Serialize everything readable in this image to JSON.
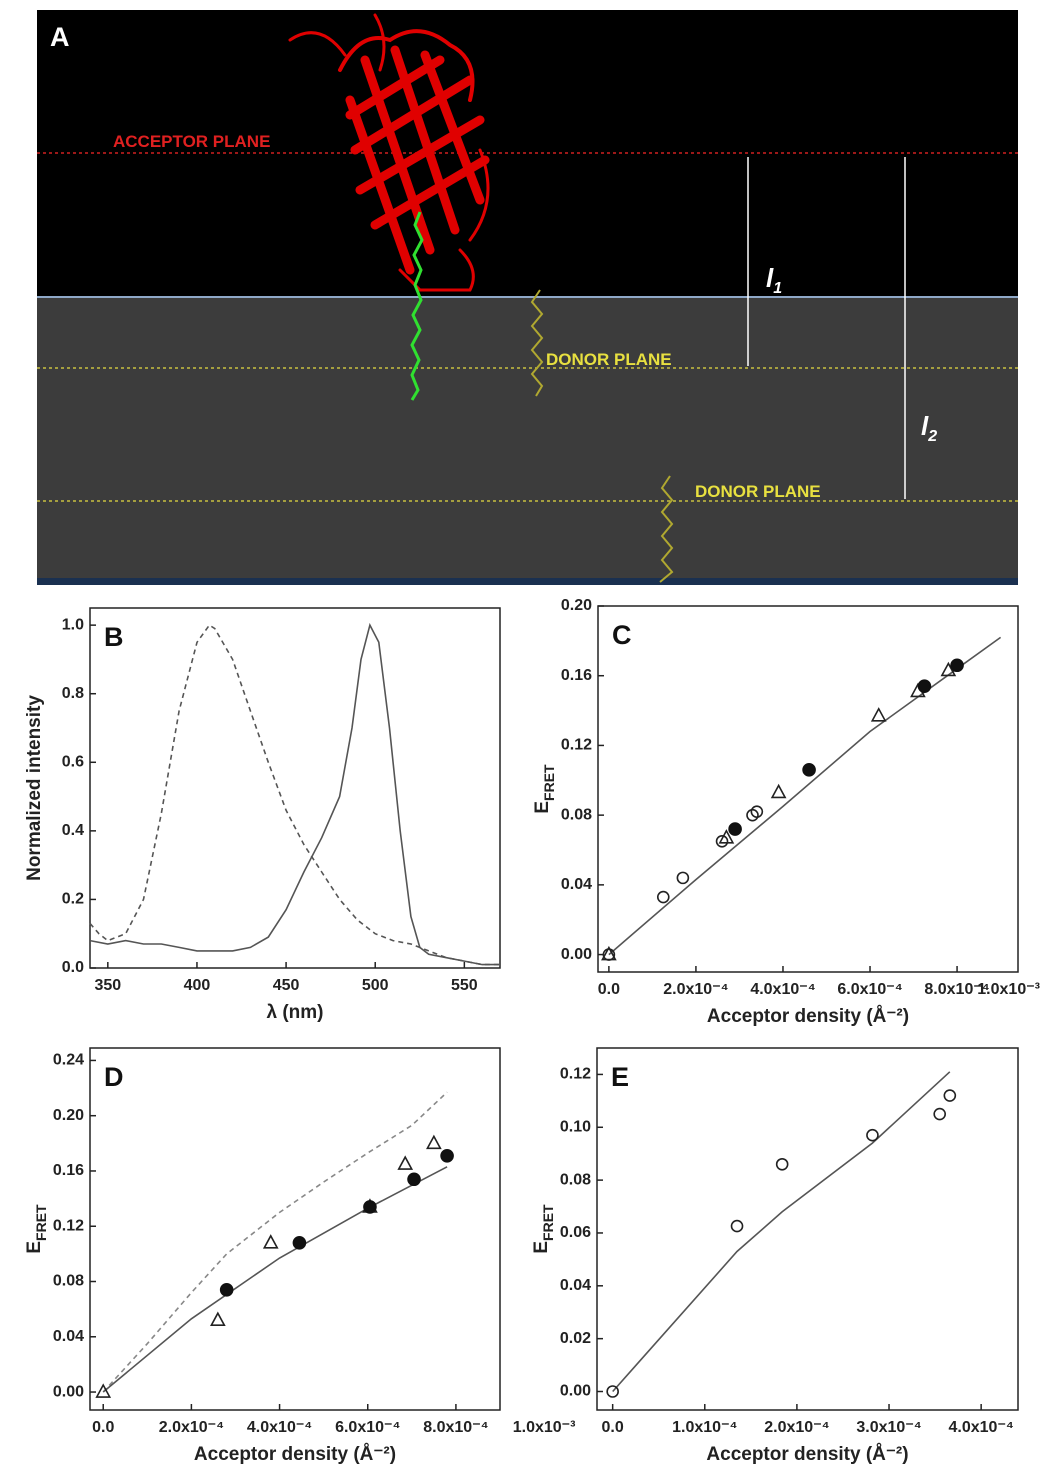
{
  "panel_a": {
    "label": "A",
    "acceptor_plane": "ACCEPTOR PLANE",
    "donor_plane_1": "DONOR PLANE",
    "donor_plane_2": "DONOR PLANE",
    "l1": {
      "main": "l",
      "sub": "1"
    },
    "l2": {
      "main": "l",
      "sub": "2"
    }
  },
  "chart_data": [
    {
      "type": "line",
      "panel": "B",
      "xlabel": "λ (nm)",
      "ylabel": "Normalized intensity",
      "xlim": [
        340,
        570
      ],
      "xticks": [
        350,
        400,
        450,
        500,
        550
      ],
      "ylim": [
        0,
        1.05
      ],
      "yticks": [
        {
          "value": 0,
          "label": "0.0"
        },
        0.2,
        0.4,
        0.6,
        0.8,
        {
          "value": 1,
          "label": "1.0"
        }
      ],
      "series": [
        {
          "style": "dashed",
          "color": "#555555",
          "x": [
            340,
            345,
            350,
            360,
            370,
            380,
            390,
            400,
            407,
            410,
            420,
            430,
            440,
            450,
            460,
            470,
            480,
            490,
            500,
            510,
            520,
            530,
            540,
            550,
            560,
            570
          ],
          "values": [
            0.13,
            0.1,
            0.08,
            0.1,
            0.2,
            0.45,
            0.75,
            0.95,
            1.0,
            0.99,
            0.9,
            0.75,
            0.6,
            0.46,
            0.36,
            0.28,
            0.2,
            0.14,
            0.1,
            0.08,
            0.07,
            0.05,
            0.03,
            0.02,
            0.01,
            0.01
          ]
        },
        {
          "style": "solid",
          "color": "#555555",
          "x": [
            340,
            350,
            360,
            370,
            380,
            390,
            400,
            410,
            420,
            430,
            440,
            450,
            460,
            470,
            480,
            487,
            492,
            497,
            502,
            508,
            514,
            520,
            525,
            530,
            540,
            550,
            560,
            570
          ],
          "values": [
            0.08,
            0.07,
            0.08,
            0.07,
            0.07,
            0.06,
            0.05,
            0.05,
            0.05,
            0.06,
            0.09,
            0.17,
            0.28,
            0.38,
            0.5,
            0.7,
            0.9,
            1.0,
            0.95,
            0.7,
            0.4,
            0.15,
            0.06,
            0.04,
            0.03,
            0.02,
            0.01,
            0.01
          ]
        }
      ]
    },
    {
      "type": "scatter",
      "panel": "C",
      "xlabel": "Acceptor density (Å⁻²)",
      "ylabel": {
        "main": "E",
        "sub": "FRET"
      },
      "xlim": [
        -2.5e-05,
        0.00094
      ],
      "xticks": [
        {
          "value": 0,
          "label": "0.0"
        },
        {
          "value": 0.0002,
          "label": "2.0x10⁻⁴"
        },
        {
          "value": 0.0004,
          "label": "4.0x10⁻⁴"
        },
        {
          "value": 0.0006,
          "label": "6.0x10⁻⁴"
        },
        {
          "value": 0.0008,
          "label": "8.0x10⁻⁴"
        },
        {
          "value": 0.001,
          "label": "1.0x10⁻³"
        }
      ],
      "ylim": [
        -0.01,
        0.2
      ],
      "yticks": [
        {
          "value": 0,
          "label": "0.00"
        },
        0.04,
        0.08,
        0.12,
        0.16,
        {
          "value": 0.2,
          "label": "0.20"
        }
      ],
      "series": [
        {
          "style": "solid",
          "color": "#555555",
          "x": [
            0,
            0.0002,
            0.0004,
            0.0006,
            0.0008,
            0.0009
          ],
          "values": [
            0,
            0.043,
            0.085,
            0.128,
            0.164,
            0.182
          ]
        },
        {
          "style": "circle-open",
          "color": "#222222",
          "x": [
            0,
            0.000125,
            0.00017,
            0.00026,
            0.00033,
            0.00034
          ],
          "values": [
            0,
            0.033,
            0.044,
            0.065,
            0.08,
            0.082
          ]
        },
        {
          "style": "triangle-open",
          "color": "#222222",
          "x": [
            0,
            0.00027,
            0.00039,
            0.00062,
            0.00071,
            0.00078
          ],
          "values": [
            0,
            0.067,
            0.093,
            0.137,
            0.151,
            0.163
          ]
        },
        {
          "style": "circle-filled",
          "color": "#111111",
          "x": [
            0.00029,
            0.00046,
            0.000725,
            0.0008
          ],
          "values": [
            0.072,
            0.106,
            0.154,
            0.166
          ]
        }
      ]
    },
    {
      "type": "scatter",
      "panel": "D",
      "xlabel": "Acceptor density (Å⁻²)",
      "ylabel": {
        "main": "E",
        "sub": "FRET"
      },
      "xlim": [
        -3e-05,
        0.0009
      ],
      "xticks": [
        {
          "value": 0,
          "label": "0.0"
        },
        {
          "value": 0.0002,
          "label": "2.0x10⁻⁴"
        },
        {
          "value": 0.0004,
          "label": "4.0x10⁻⁴"
        },
        {
          "value": 0.0006,
          "label": "6.0x10⁻⁴"
        },
        {
          "value": 0.0008,
          "label": "8.0x10⁻⁴"
        },
        {
          "value": 0.001,
          "label": "1.0x10⁻³"
        }
      ],
      "ylim": [
        -0.013,
        0.249
      ],
      "yticks": [
        {
          "value": 0,
          "label": "0.00"
        },
        0.04,
        0.08,
        0.12,
        0.16,
        {
          "value": 0.2,
          "label": "0.20"
        },
        0.24
      ],
      "series": [
        {
          "style": "dashed",
          "color": "#888888",
          "x": [
            0,
            0.0001,
            0.0002,
            0.00028,
            0.0004,
            0.0005,
            0.0006,
            0.0007,
            0.00078
          ],
          "values": [
            0,
            0.035,
            0.072,
            0.1,
            0.13,
            0.152,
            0.173,
            0.193,
            0.217
          ]
        },
        {
          "style": "solid",
          "color": "#555555",
          "x": [
            0,
            0.0002,
            0.0004,
            0.0006,
            0.00078
          ],
          "values": [
            0,
            0.053,
            0.097,
            0.133,
            0.163
          ]
        },
        {
          "style": "triangle-open",
          "color": "#222222",
          "x": [
            0,
            0.00026,
            0.00038,
            0.000605,
            0.000685,
            0.00075
          ],
          "values": [
            0,
            0.052,
            0.108,
            0.134,
            0.165,
            0.18
          ]
        },
        {
          "style": "circle-filled",
          "color": "#111111",
          "x": [
            0.00028,
            0.000445,
            0.000605,
            0.000705,
            0.00078
          ],
          "values": [
            0.074,
            0.108,
            0.134,
            0.154,
            0.171
          ]
        }
      ]
    },
    {
      "type": "scatter",
      "panel": "E",
      "xlabel": "Acceptor density (Å⁻²)",
      "ylabel": {
        "main": "E",
        "sub": "FRET"
      },
      "xlim": [
        -1.7e-05,
        0.00044
      ],
      "xticks": [
        {
          "value": 0,
          "label": "0.0"
        },
        {
          "value": 0.0001,
          "label": "1.0x10⁻⁴"
        },
        {
          "value": 0.0002,
          "label": "2.0x10⁻⁴"
        },
        {
          "value": 0.0003,
          "label": "3.0x10⁻⁴"
        },
        {
          "value": 0.0004,
          "label": "4.0x10⁻⁴"
        }
      ],
      "ylim": [
        -0.007,
        0.13
      ],
      "yticks": [
        {
          "value": 0,
          "label": "0.00"
        },
        0.02,
        0.04,
        0.06,
        0.08,
        {
          "value": 0.1,
          "label": "0.10"
        },
        0.12
      ],
      "series": [
        {
          "style": "solid",
          "color": "#555555",
          "x": [
            0,
            0.000135,
            0.000184,
            0.000282,
            0.000366
          ],
          "values": [
            0,
            0.053,
            0.068,
            0.094,
            0.121
          ]
        },
        {
          "style": "circle-open",
          "color": "#222222",
          "x": [
            0,
            0.000135,
            0.000184,
            0.000282,
            0.000355,
            0.000366
          ],
          "values": [
            0,
            0.0626,
            0.086,
            0.097,
            0.105,
            0.112
          ]
        }
      ]
    }
  ]
}
